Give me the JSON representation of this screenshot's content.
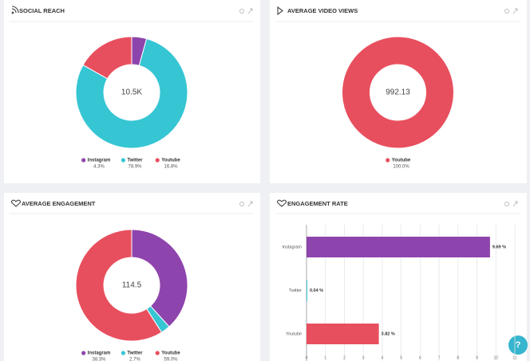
{
  "chart_data": [
    {
      "type": "donut",
      "title": "SOCIAL REACH",
      "center_label": "10.5K",
      "categories": [
        "Instagram",
        "Twitter",
        "Youtube"
      ],
      "values": [
        4.3,
        78.9,
        16.8
      ],
      "value_labels": [
        "4.3%",
        "78.9%",
        "16.8%"
      ],
      "colors": [
        "#8e44ad",
        "#36c5d3",
        "#e84f5e"
      ]
    },
    {
      "type": "donut",
      "title": "AVERAGE VIDEO VIEWS",
      "center_label": "992.13",
      "categories": [
        "Youtube"
      ],
      "values": [
        100.0
      ],
      "value_labels": [
        "100.0%"
      ],
      "colors": [
        "#e84f5e"
      ]
    },
    {
      "type": "donut",
      "title": "AVERAGE ENGAGEMENT",
      "center_label": "114.5",
      "categories": [
        "Instagram",
        "Twitter",
        "Youtube"
      ],
      "values": [
        38.3,
        2.7,
        59.0
      ],
      "value_labels": [
        "38.3%",
        "2.7%",
        "59.0%"
      ],
      "colors": [
        "#8e44ad",
        "#36c5d3",
        "#e84f5e"
      ]
    },
    {
      "type": "hbar",
      "title": "ENGAGEMENT RATE",
      "categories": [
        "Instagram",
        "Twitter",
        "Youtube"
      ],
      "values": [
        9.69,
        0.04,
        3.82
      ],
      "value_labels": [
        "9.69 %",
        "0.04 %",
        "3.82 %"
      ],
      "colors": [
        "#8e44ad",
        "#36c5d3",
        "#e84f5e"
      ],
      "xlim": [
        0,
        11
      ],
      "xticks": [
        0,
        1,
        2,
        3,
        4,
        5,
        6,
        7,
        8,
        9,
        10,
        11
      ],
      "grid": true
    }
  ],
  "help_button": "?"
}
